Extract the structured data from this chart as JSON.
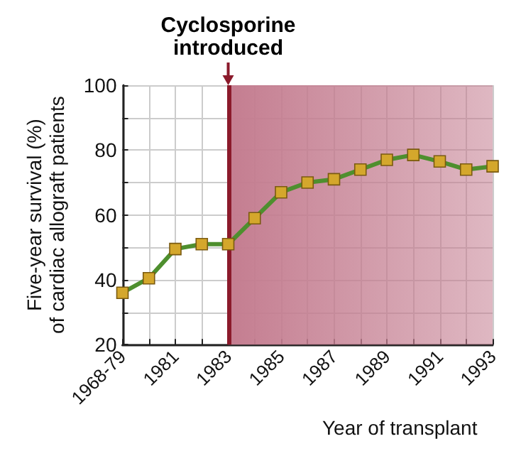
{
  "chart_data": {
    "type": "line",
    "xlabel": "Year of transplant",
    "ylabel": "Five-year survival (%)\nof cardiac allograft patients",
    "categories": [
      "1968-79",
      null,
      "1981",
      null,
      "1983",
      null,
      "1985",
      null,
      "1987",
      null,
      "1989",
      null,
      "1991",
      null,
      "1993"
    ],
    "series": [
      {
        "color": "#4e8f2e",
        "values": [
          36,
          40.5,
          49.5,
          51,
          51,
          59,
          67,
          70,
          71,
          74,
          77,
          78.5,
          76.5,
          74,
          75
        ]
      }
    ],
    "ylim": [
      20,
      100
    ],
    "yticks": [
      20,
      {
        "value": 30,
        "label": null
      },
      40,
      {
        "value": 50,
        "label": null
      },
      60,
      {
        "value": 70,
        "label": null
      },
      80,
      {
        "value": 90,
        "label": null
      },
      100
    ],
    "grid": true,
    "marker": "square",
    "ref_lines": [
      {
        "axis": "x",
        "value": "1983",
        "label": "Cyclosporine\nintroduced",
        "color": "#8b1a2b"
      }
    ],
    "bands": [
      {
        "axis": "x",
        "from": "1983",
        "to": "1993",
        "color": "#c47d90"
      }
    ]
  }
}
